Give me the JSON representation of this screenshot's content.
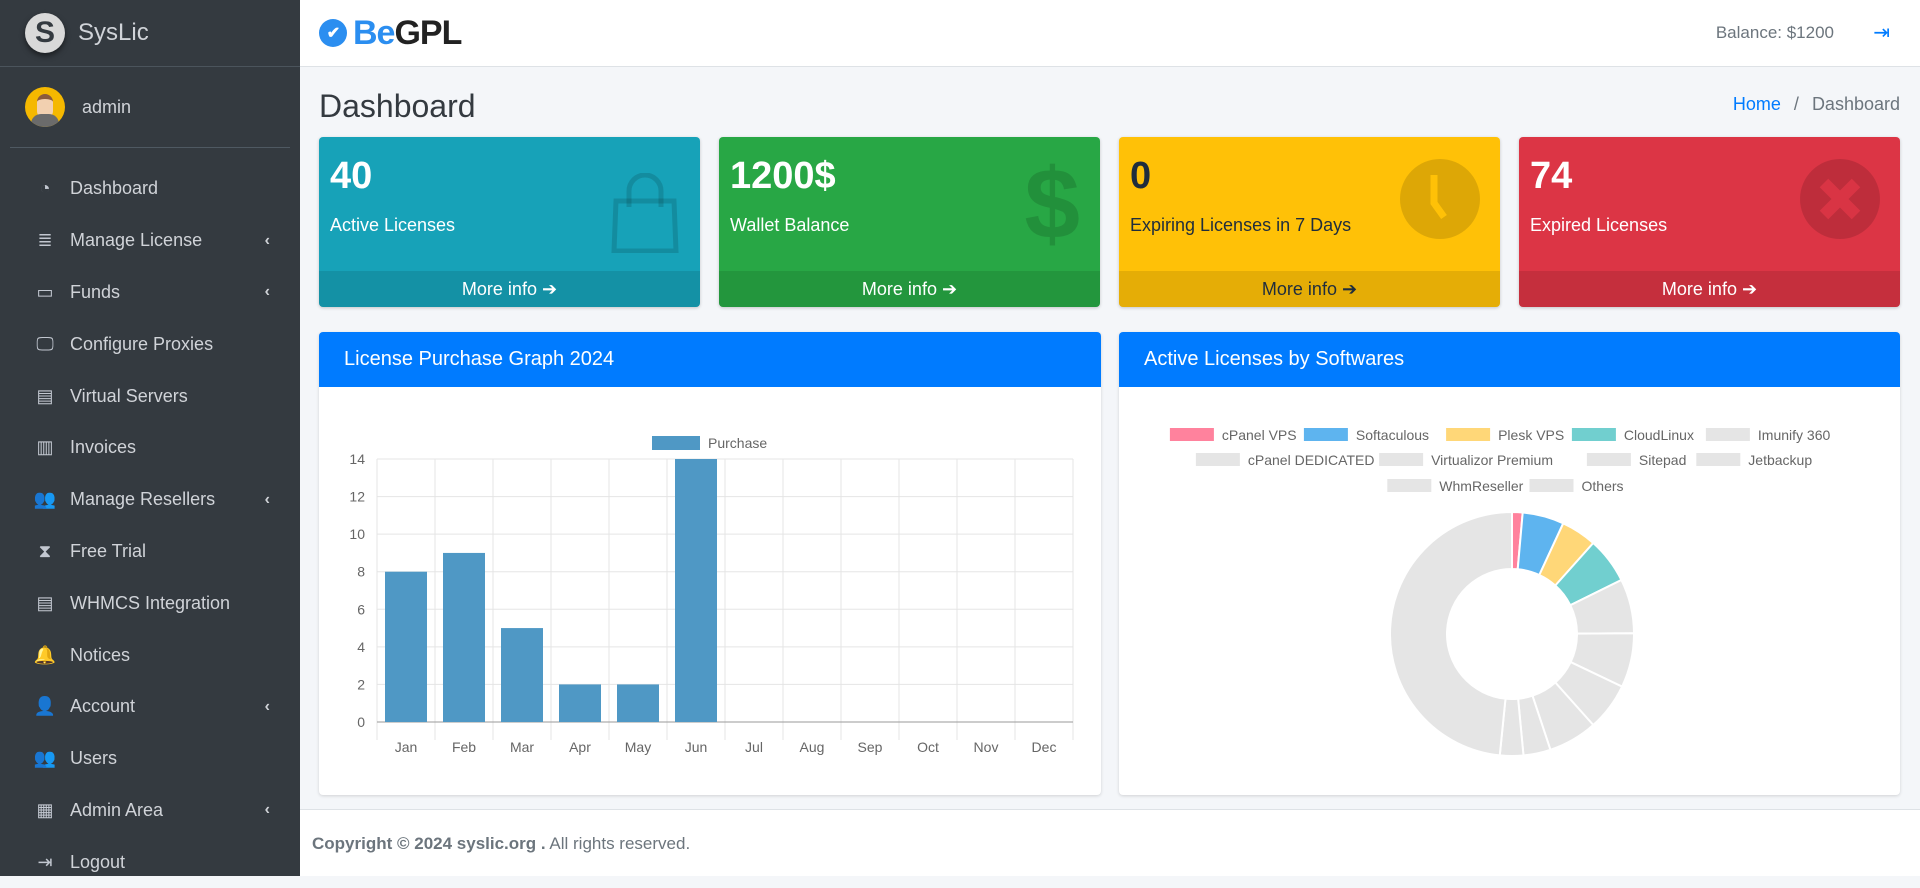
{
  "sidebar": {
    "brand": "SysLic",
    "brand_letter": "S",
    "user": "admin",
    "items": [
      {
        "label": "Dashboard",
        "icon": "tachometer-icon",
        "glyph": "◔",
        "chevron": false
      },
      {
        "label": "Manage License",
        "icon": "database-icon",
        "glyph": "≣",
        "chevron": true
      },
      {
        "label": "Funds",
        "icon": "wallet-icon",
        "glyph": "▭",
        "chevron": true
      },
      {
        "label": "Configure Proxies",
        "icon": "desktop-icon",
        "glyph": "🖵",
        "chevron": false
      },
      {
        "label": "Virtual Servers",
        "icon": "book-icon",
        "glyph": "▤",
        "chevron": false
      },
      {
        "label": "Invoices",
        "icon": "file-invoice-icon",
        "glyph": "▥",
        "chevron": false
      },
      {
        "label": "Manage Resellers",
        "icon": "users-icon",
        "glyph": "👥",
        "chevron": true
      },
      {
        "label": "Free Trial",
        "icon": "hourglass-icon",
        "glyph": "⧗",
        "chevron": false
      },
      {
        "label": "WHMCS Integration",
        "icon": "book-icon",
        "glyph": "▤",
        "chevron": false
      },
      {
        "label": "Notices",
        "icon": "bell-icon",
        "glyph": "🔔",
        "chevron": false
      },
      {
        "label": "Account",
        "icon": "user-icon",
        "glyph": "👤",
        "chevron": true
      },
      {
        "label": "Users",
        "icon": "users-icon",
        "glyph": "👥",
        "chevron": false
      },
      {
        "label": "Admin Area",
        "icon": "grid-icon",
        "glyph": "▦",
        "chevron": true
      },
      {
        "label": "Logout",
        "icon": "sign-out-icon",
        "glyph": "⇥",
        "chevron": false
      }
    ]
  },
  "topbar": {
    "logo_be": "Be",
    "logo_gpl": "GPL",
    "balance": "Balance: $1200"
  },
  "page": {
    "title": "Dashboard",
    "breadcrumb": [
      "Home",
      "Dashboard"
    ]
  },
  "cards": [
    {
      "value": "40",
      "label": "Active Licenses",
      "more": "More info",
      "color": "#17a2b8",
      "icon": "shopping-bag-icon",
      "glyph": "👜",
      "dark": false
    },
    {
      "value": "1200$",
      "label": "Wallet Balance",
      "more": "More info",
      "color": "#28a745",
      "icon": "dollar-icon",
      "glyph": "$",
      "dark": false
    },
    {
      "value": "0",
      "label": "Expiring Licenses in 7 Days",
      "more": "More info",
      "color": "#ffc107",
      "icon": "clock-icon",
      "glyph": "●",
      "dark": true
    },
    {
      "value": "74",
      "label": "Expired Licenses",
      "more": "More info",
      "color": "#dc3545",
      "icon": "times-circle-icon",
      "glyph": "●",
      "dark": false
    }
  ],
  "panels": {
    "left_title": "License Purchase Graph 2024",
    "right_title": "Active Licenses by Softwares"
  },
  "chart_data": [
    {
      "type": "bar",
      "categories": [
        "Jan",
        "Feb",
        "Mar",
        "Apr",
        "May",
        "Jun",
        "Jul",
        "Aug",
        "Sep",
        "Oct",
        "Nov",
        "Dec"
      ],
      "series": [
        {
          "name": "Purchase",
          "values": [
            8,
            9,
            5,
            2,
            2,
            14,
            0,
            0,
            0,
            0,
            0,
            0
          ],
          "color": "#4f98c5"
        }
      ],
      "ylim": [
        0,
        14
      ],
      "yticks": [
        0,
        2,
        4,
        6,
        8,
        10,
        12,
        14
      ],
      "grid": true,
      "legend": "top"
    },
    {
      "type": "pie",
      "donut": true,
      "legend": "top",
      "labels": [
        "cPanel VPS",
        "Softaculous",
        "Plesk VPS",
        "CloudLinux",
        "Imunify 360",
        "cPanel DEDICATED",
        "Virtualizor Premium",
        "Sitepad",
        "Jetbackup",
        "WhmReseller",
        "Others"
      ],
      "values": [
        1.4,
        5.5,
        4.7,
        6.1,
        7.2,
        7.2,
        6.3,
        6.5,
        3.6,
        3.1,
        48.4
      ],
      "colors": [
        "#ff829d",
        "#5eb4ef",
        "#ffd778",
        "#71cfcf",
        "#e5e5e5",
        "#e5e5e5",
        "#e5e5e5",
        "#e5e5e5",
        "#e5e5e5",
        "#e5e5e5",
        "#e5e5e5"
      ]
    }
  ],
  "footer": {
    "copyright": "Copyright © 2024 syslic.org .",
    "rights": " All rights reserved."
  }
}
